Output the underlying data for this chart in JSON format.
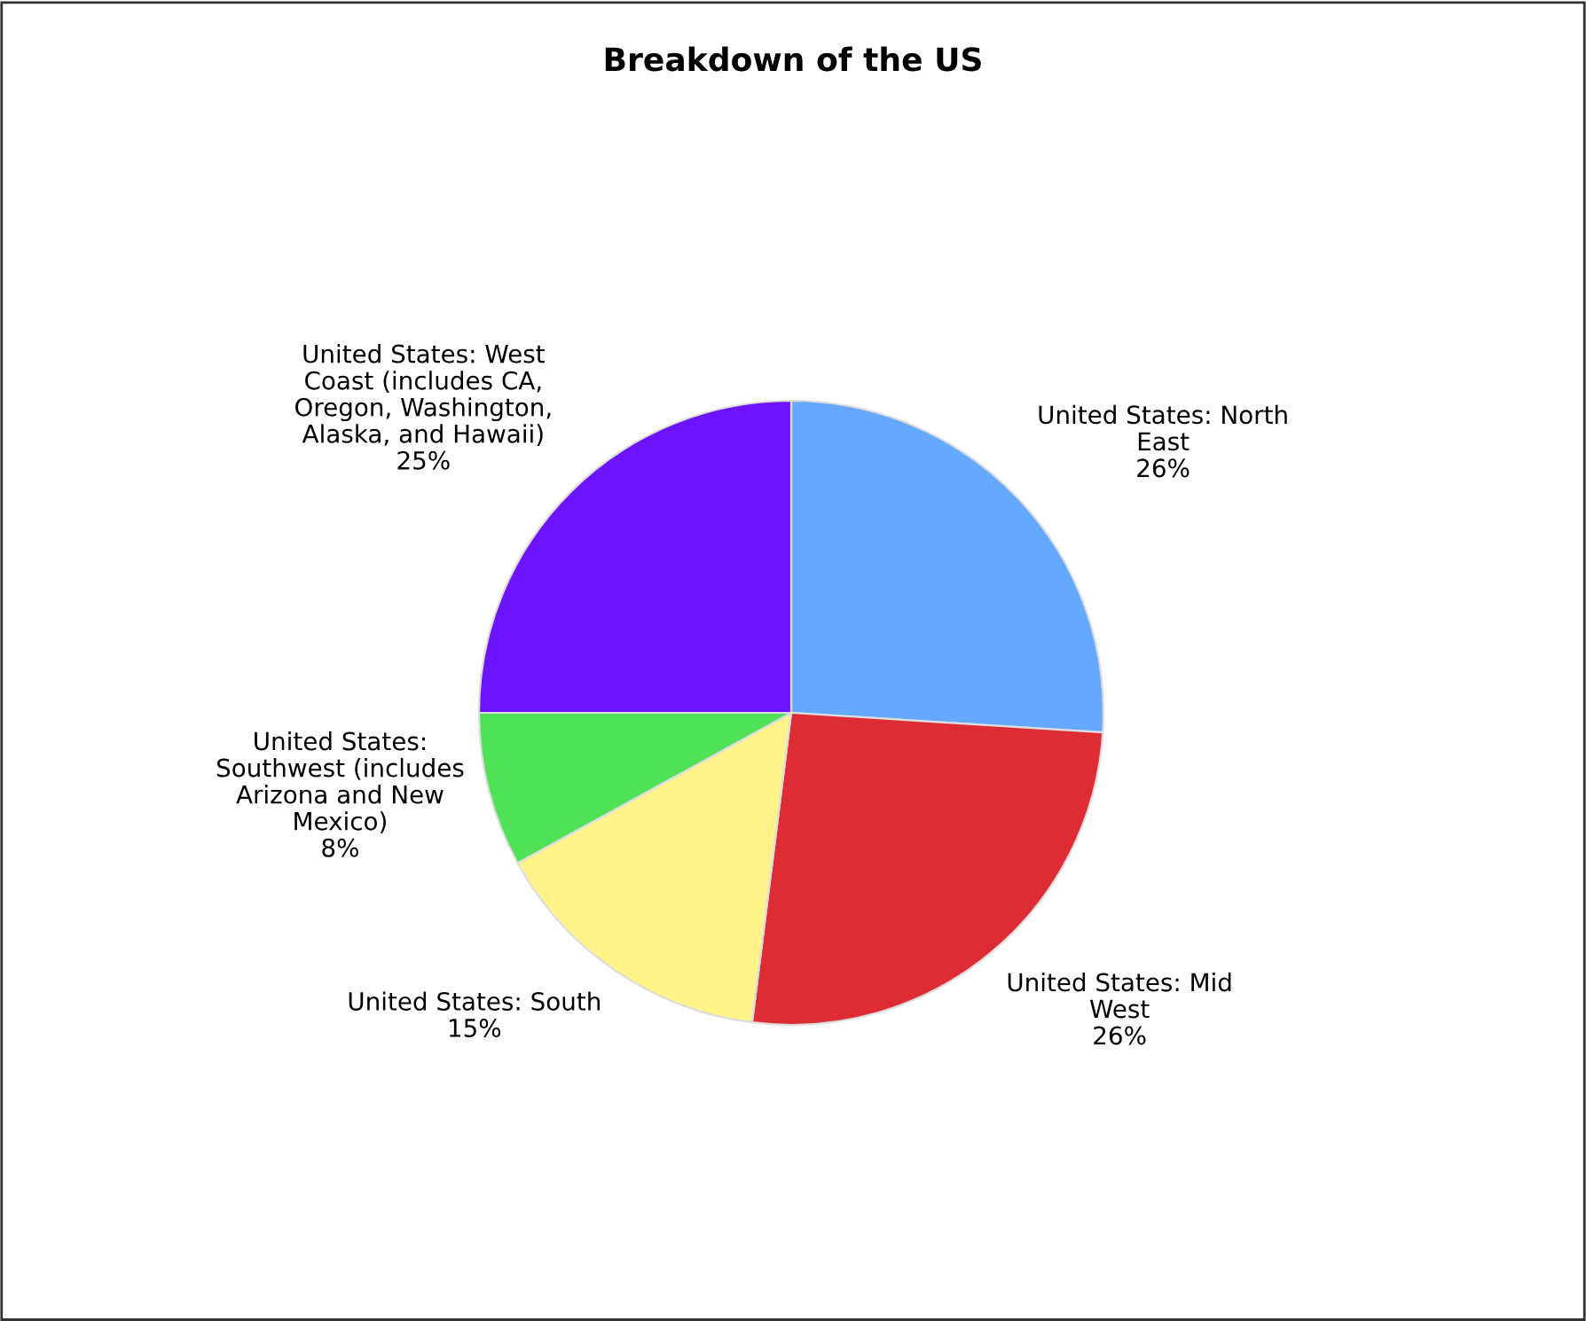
{
  "chart_data": {
    "type": "pie",
    "title": "Breakdown of the US",
    "categories": [
      "United States: North East",
      "United States: Mid West",
      "United States: South",
      "United States: Southwest (includes Arizona and New Mexico)",
      "United States: West Coast (includes CA, Oregon, Washington, Alaska, and Hawaii)"
    ],
    "values": [
      26,
      26,
      15,
      8,
      25
    ],
    "colors": [
      "#64a8ff",
      "#dd2c33",
      "#fff38a",
      "#50e256",
      "#6c13ff"
    ],
    "value_labels": [
      "26%",
      "26%",
      "15%",
      "8%",
      "25%"
    ],
    "legend": false
  }
}
